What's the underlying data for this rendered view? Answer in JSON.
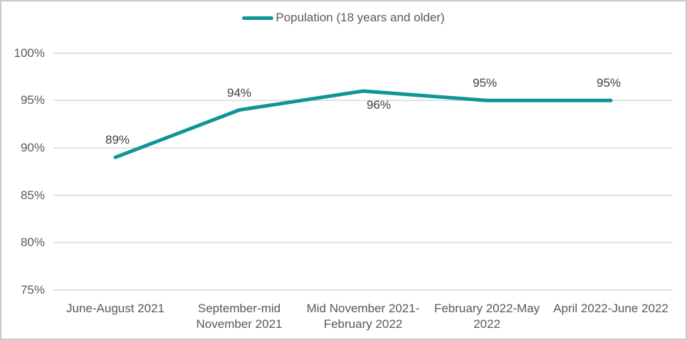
{
  "window": {
    "background": "#FFFFFF",
    "border_color": "#C9C9C9"
  },
  "colors": {
    "accent_teal": "#0E9598",
    "gridline": "#D9D9D9",
    "axis_text": "#595959",
    "data_label_text": "#404040"
  },
  "chart_data": {
    "type": "line",
    "title": "",
    "legend": {
      "label": "Population (18 years and older)",
      "position": "top-center",
      "marker_color": "#0E9598"
    },
    "categories": [
      [
        "June-August 2021"
      ],
      [
        "September-mid",
        "November 2021"
      ],
      [
        "Mid November 2021-",
        "February 2022"
      ],
      [
        "February 2022-May",
        "2022"
      ],
      [
        "April 2022-June 2022"
      ]
    ],
    "series": [
      {
        "name": "Population (18 years and older)",
        "values": [
          89,
          94,
          96,
          95,
          95
        ],
        "labels": [
          "89%",
          "94%",
          "96%",
          "95%",
          "95%"
        ],
        "color": "#0E9598"
      }
    ],
    "label_positions": [
      "above",
      "above",
      "below",
      "above",
      "above"
    ],
    "y_axis": {
      "min": 75,
      "max": 100,
      "step": 5,
      "ticks": [
        {
          "value": 100,
          "label": "100%"
        },
        {
          "value": 95,
          "label": "95%"
        },
        {
          "value": 90,
          "label": "90%"
        },
        {
          "value": 85,
          "label": "85%"
        },
        {
          "value": 80,
          "label": "80%"
        },
        {
          "value": 75,
          "label": "75%"
        }
      ]
    },
    "ylim": [
      75,
      100
    ],
    "grid": true
  }
}
